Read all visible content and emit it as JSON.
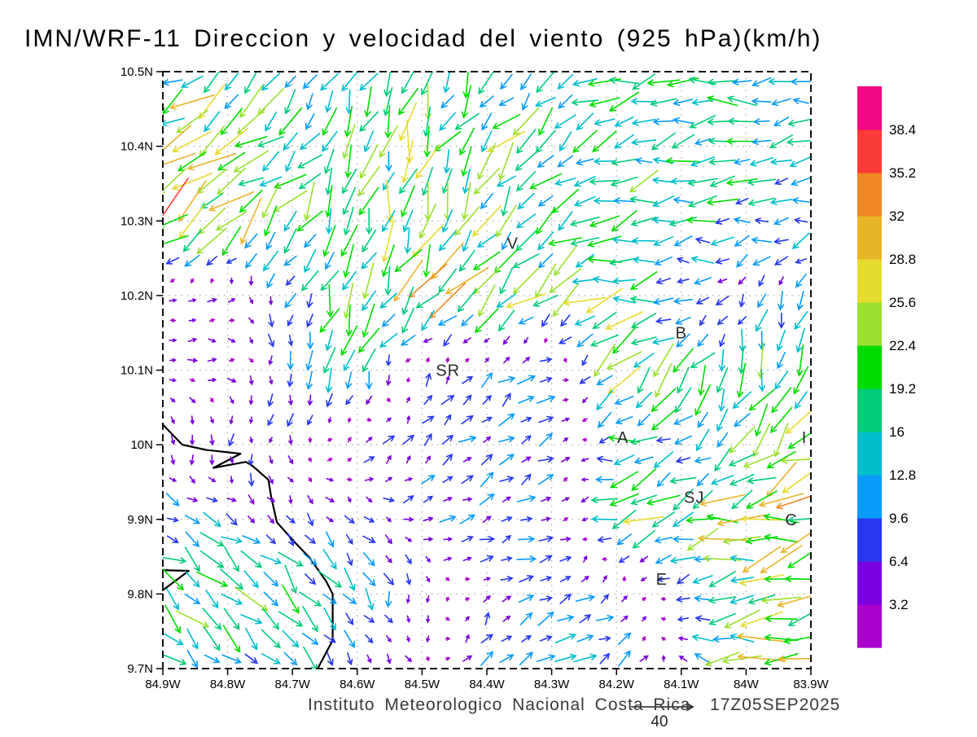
{
  "title": "IMN/WRF-11 Direccion y velocidad del viento (925 hPa)(km/h)",
  "credit": "Instituto Meteorologico Nacional Costa Rica  17Z05SEP2025",
  "reference_vector": {
    "value": "40"
  },
  "colors": {
    "frame": "#111111",
    "grid": "#aaaaaa",
    "coast": "#000000",
    "tick": "#000000"
  },
  "chart_data": {
    "type": "vector_field",
    "title": "IMN/WRF-11 Direccion y velocidad del viento (925 hPa)(km/h)",
    "model": "IMN/WRF-11",
    "variable": "Direccion y velocidad del viento",
    "level": "925 hPa",
    "units": "km/h",
    "valid_time": "17Z05SEP2025",
    "source": "Instituto Meteorologico Nacional Costa Rica",
    "xlabel": "",
    "ylabel": "",
    "xlim": [
      -84.9,
      -83.9
    ],
    "ylim": [
      9.7,
      10.5
    ],
    "grid": true,
    "reference_vector_kmh": 40,
    "x_ticks": {
      "values": [
        -84.9,
        -84.8,
        -84.7,
        -84.6,
        -84.5,
        -84.4,
        -84.3,
        -84.2,
        -84.1,
        -84.0,
        -83.9
      ],
      "labels": [
        "84.9W",
        "84.8W",
        "84.7W",
        "84.6W",
        "84.5W",
        "84.4W",
        "84.3W",
        "84.2W",
        "84.1W",
        "84W",
        "83.9W"
      ]
    },
    "y_ticks": {
      "values": [
        10.5,
        10.4,
        10.3,
        10.2,
        10.1,
        10.0,
        9.9,
        9.8,
        9.7
      ],
      "labels": [
        "10.5N",
        "10.4N",
        "10.3N",
        "10.2N",
        "10.1N",
        "10N",
        "9.9N",
        "9.8N",
        "9.7N"
      ]
    },
    "colorbar": {
      "orientation": "vertical-right",
      "levels": [
        3.2,
        6.4,
        9.6,
        12.8,
        16,
        19.2,
        22.4,
        25.6,
        28.8,
        32,
        35.2,
        38.4
      ],
      "level_labels": [
        "3.2",
        "6.4",
        "9.6",
        "12.8",
        "16",
        "19.2",
        "22.4",
        "25.6",
        "28.8",
        "32",
        "35.2",
        "38.4"
      ],
      "colors": [
        "#AA00CC",
        "#7A00E0",
        "#2838F0",
        "#089CF8",
        "#00BECC",
        "#00CC7A",
        "#00DC00",
        "#9CE030",
        "#E6DC30",
        "#E8B428",
        "#F08824",
        "#FA3C38",
        "#F00884"
      ]
    },
    "arrow_grid": {
      "nx": 33,
      "ny": 30
    },
    "wind_grid": {
      "lats": [
        10.5,
        10.4,
        10.3,
        10.2,
        10.1,
        10.0,
        9.9,
        9.8,
        9.7
      ],
      "lons": [
        -84.9,
        -84.8,
        -84.7,
        -84.6,
        -84.5,
        -84.4,
        -84.3,
        -84.2,
        -84.1,
        -84.0,
        -83.9
      ],
      "u": [
        [
          -16,
          -13,
          -9,
          -6,
          -5,
          -7,
          -12,
          -15,
          -16,
          -16,
          -14
        ],
        [
          -22,
          -18,
          -14,
          -6,
          -8,
          -12,
          -14,
          -16,
          -15,
          -15,
          -13
        ],
        [
          -24,
          -21,
          -12,
          -5,
          -6,
          -10,
          -12,
          -14,
          -17,
          -12,
          -11
        ],
        [
          4,
          4,
          -2,
          -5,
          -16,
          -20,
          -16,
          -22,
          -8,
          -4,
          -5
        ],
        [
          4,
          5,
          -3,
          -6,
          2,
          6,
          8,
          -16,
          -12,
          -5,
          -7
        ],
        [
          0,
          -2,
          0,
          3,
          5,
          7,
          8,
          -14,
          -10,
          -8,
          -18
        ],
        [
          10,
          9,
          4,
          3,
          8,
          8,
          8,
          -16,
          -18,
          -26,
          -24
        ],
        [
          12,
          14,
          13,
          8,
          -2,
          3,
          10,
          6,
          -6,
          -20,
          -22
        ],
        [
          14,
          12,
          9,
          4,
          1,
          4,
          10,
          10,
          -4,
          -24,
          -22
        ]
      ],
      "v": [
        [
          -11,
          -11,
          -9,
          -14,
          -14,
          -12,
          -8,
          -4,
          -2,
          -2,
          -3
        ],
        [
          -16,
          -14,
          -13,
          -16,
          -20,
          -16,
          -12,
          -5,
          -3,
          -2,
          -2
        ],
        [
          -18,
          -16,
          -14,
          -16,
          -22,
          -16,
          -10,
          -4,
          -2,
          -2,
          -2
        ],
        [
          2,
          1,
          -8,
          -20,
          -18,
          -18,
          -12,
          -4,
          0,
          -6,
          -8
        ],
        [
          -1,
          0,
          -10,
          -16,
          5,
          6,
          4,
          -16,
          -14,
          -16,
          -18
        ],
        [
          -5,
          -6,
          -4,
          6,
          6,
          5,
          4,
          -2,
          -6,
          -16,
          -10
        ],
        [
          -2,
          -5,
          -5,
          -6,
          2,
          3,
          3,
          -6,
          -8,
          -4,
          -6
        ],
        [
          -10,
          -13,
          -12,
          -11,
          -6,
          3,
          6,
          4,
          -2,
          -4,
          -4
        ],
        [
          -10,
          -10,
          -10,
          -6,
          -2,
          8,
          6,
          5,
          2,
          2,
          -4
        ]
      ]
    },
    "city_markers": [
      {
        "label": "V",
        "lon": -84.36,
        "lat": 10.27
      },
      {
        "label": "B",
        "lon": -84.1,
        "lat": 10.15
      },
      {
        "label": "SR",
        "lon": -84.46,
        "lat": 10.1
      },
      {
        "label": "A",
        "lon": -84.19,
        "lat": 10.01
      },
      {
        "label": "I",
        "lon": -83.91,
        "lat": 10.01
      },
      {
        "label": "SJ",
        "lon": -84.08,
        "lat": 9.93
      },
      {
        "label": "C",
        "lon": -83.93,
        "lat": 9.9
      },
      {
        "label": "E",
        "lon": -84.13,
        "lat": 9.82
      }
    ],
    "coastline_segments": [
      [
        [
          -84.9,
          10.027
        ],
        [
          -84.87,
          10.0
        ],
        [
          -84.833,
          9.993
        ],
        [
          -84.78,
          9.988
        ],
        [
          -84.822,
          9.969
        ],
        [
          -84.772,
          9.977
        ],
        [
          -84.762,
          9.972
        ],
        [
          -84.737,
          9.953
        ],
        [
          -84.733,
          9.931
        ],
        [
          -84.724,
          9.896
        ],
        [
          -84.695,
          9.868
        ],
        [
          -84.674,
          9.849
        ],
        [
          -84.648,
          9.817
        ],
        [
          -84.638,
          9.8
        ],
        [
          -84.638,
          9.738
        ],
        [
          -84.661,
          9.7
        ]
      ],
      [
        [
          -84.9,
          9.832
        ],
        [
          -84.86,
          9.831
        ],
        [
          -84.9,
          9.805
        ]
      ]
    ]
  }
}
